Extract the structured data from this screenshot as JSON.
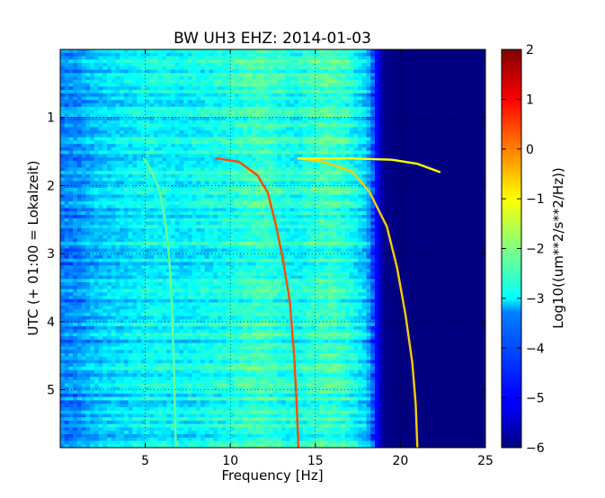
{
  "chart_data": {
    "type": "heatmap",
    "title": "BW UH3 EHZ: 2014-01-03",
    "xlabel": "Frequency [Hz]",
    "ylabel": "UTC (+ 01:00 = Lokalzeit)",
    "xlim": [
      0,
      25
    ],
    "ylim": [
      5.85,
      0
    ],
    "x_ticks": [
      5,
      10,
      15,
      20,
      25
    ],
    "y_ticks": [
      1,
      2,
      3,
      4,
      5
    ],
    "grid": true,
    "colormap": "jet",
    "colorbar": {
      "label": "Log10((um**2/s**2/Hz))",
      "range": [
        -6,
        2
      ],
      "ticks": [
        2,
        1,
        0,
        -1,
        -2,
        -3,
        -4,
        -5,
        -6
      ]
    },
    "background_profile": {
      "frequency_hz": [
        0,
        1,
        2,
        3,
        4,
        5,
        6,
        7,
        8,
        9,
        10,
        11,
        12,
        13,
        14,
        15,
        16,
        17,
        18,
        19,
        20,
        25
      ],
      "log10_psd": [
        -4.0,
        -3.9,
        -3.5,
        -3.3,
        -3.2,
        -3.0,
        -3.0,
        -3.1,
        -3.0,
        -2.9,
        -2.8,
        -2.6,
        -2.5,
        -2.8,
        -2.9,
        -2.6,
        -2.5,
        -2.8,
        -3.4,
        -5.9,
        -6.0,
        -6.0
      ]
    },
    "series": [
      {
        "frequency_hz": [
          4.9,
          5.3,
          5.8,
          6.1,
          6.35,
          6.5,
          6.6,
          6.7,
          6.75,
          6.8
        ],
        "utc_hour": [
          1.6,
          1.75,
          2.05,
          2.4,
          2.9,
          3.4,
          4.0,
          4.8,
          5.4,
          5.85
        ],
        "log10_psd": -2.2
      },
      {
        "frequency_hz": [
          9.2,
          10.5,
          11.6,
          12.2,
          12.7,
          13.1,
          13.5,
          13.75,
          13.9,
          14.0
        ],
        "utc_hour": [
          1.6,
          1.65,
          1.85,
          2.1,
          2.6,
          3.1,
          3.7,
          4.5,
          5.2,
          5.85
        ],
        "log10_psd": 0.4
      },
      {
        "frequency_hz": [
          14.0,
          15.5,
          17.2,
          18.2,
          19.2,
          19.8,
          20.3,
          20.7,
          20.9,
          21.0
        ],
        "utc_hour": [
          1.6,
          1.65,
          1.8,
          2.1,
          2.6,
          3.2,
          3.9,
          4.6,
          5.2,
          5.85
        ],
        "log10_psd": -0.6
      },
      {
        "frequency_hz": [
          14.0,
          17.0,
          19.5,
          21.0,
          22.3
        ],
        "utc_hour": [
          1.6,
          1.6,
          1.62,
          1.68,
          1.8
        ],
        "log10_psd": -1.0
      }
    ]
  }
}
